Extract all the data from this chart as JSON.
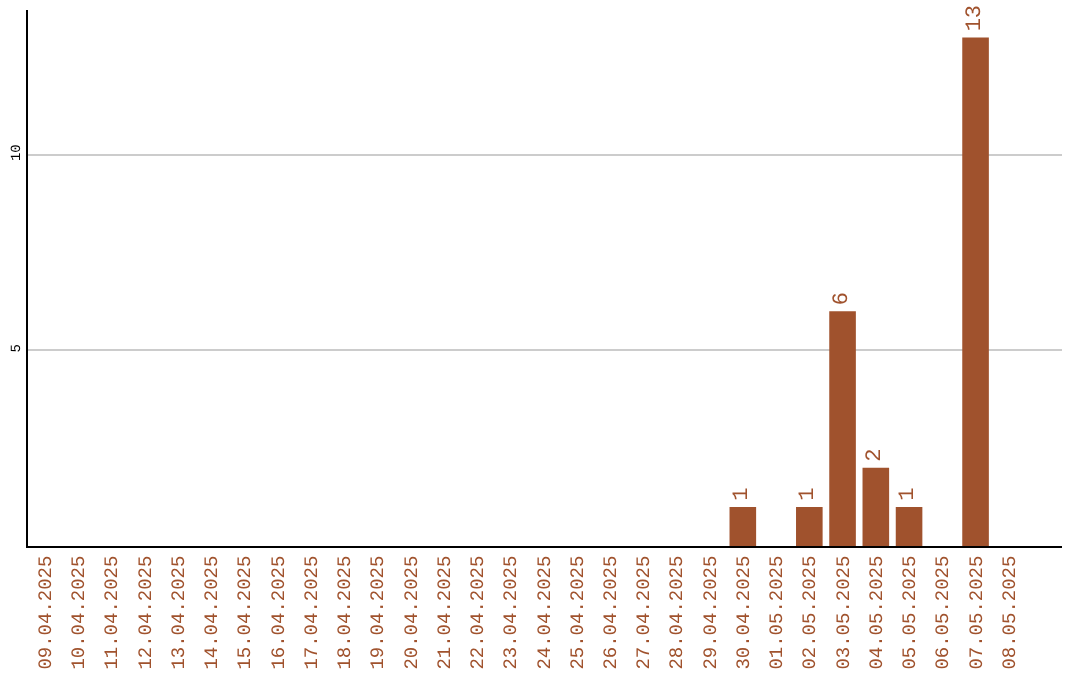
{
  "chart_data": {
    "type": "bar",
    "categories": [
      "09.04.2025",
      "10.04.2025",
      "11.04.2025",
      "12.04.2025",
      "13.04.2025",
      "14.04.2025",
      "15.04.2025",
      "16.04.2025",
      "17.04.2025",
      "18.04.2025",
      "19.04.2025",
      "20.04.2025",
      "21.04.2025",
      "22.04.2025",
      "23.04.2025",
      "24.04.2025",
      "25.04.2025",
      "26.04.2025",
      "27.04.2025",
      "28.04.2025",
      "29.04.2025",
      "30.04.2025",
      "01.05.2025",
      "02.05.2025",
      "03.05.2025",
      "04.05.2025",
      "05.05.2025",
      "06.05.2025",
      "07.05.2025",
      "08.05.2025"
    ],
    "values": [
      0,
      0,
      0,
      0,
      0,
      0,
      0,
      0,
      0,
      0,
      0,
      0,
      0,
      0,
      0,
      0,
      0,
      0,
      0,
      0,
      0,
      1,
      0,
      1,
      6,
      2,
      1,
      0,
      13,
      0
    ],
    "value_labels": [
      null,
      null,
      null,
      null,
      null,
      null,
      null,
      null,
      null,
      null,
      null,
      null,
      null,
      null,
      null,
      null,
      null,
      null,
      null,
      null,
      null,
      "1",
      null,
      "1",
      "6",
      "2",
      "1",
      null,
      "13",
      null
    ],
    "color": "#a0522d",
    "ylim": [
      0,
      13.7
    ],
    "yticks": [
      5,
      10
    ],
    "grid": "y"
  }
}
